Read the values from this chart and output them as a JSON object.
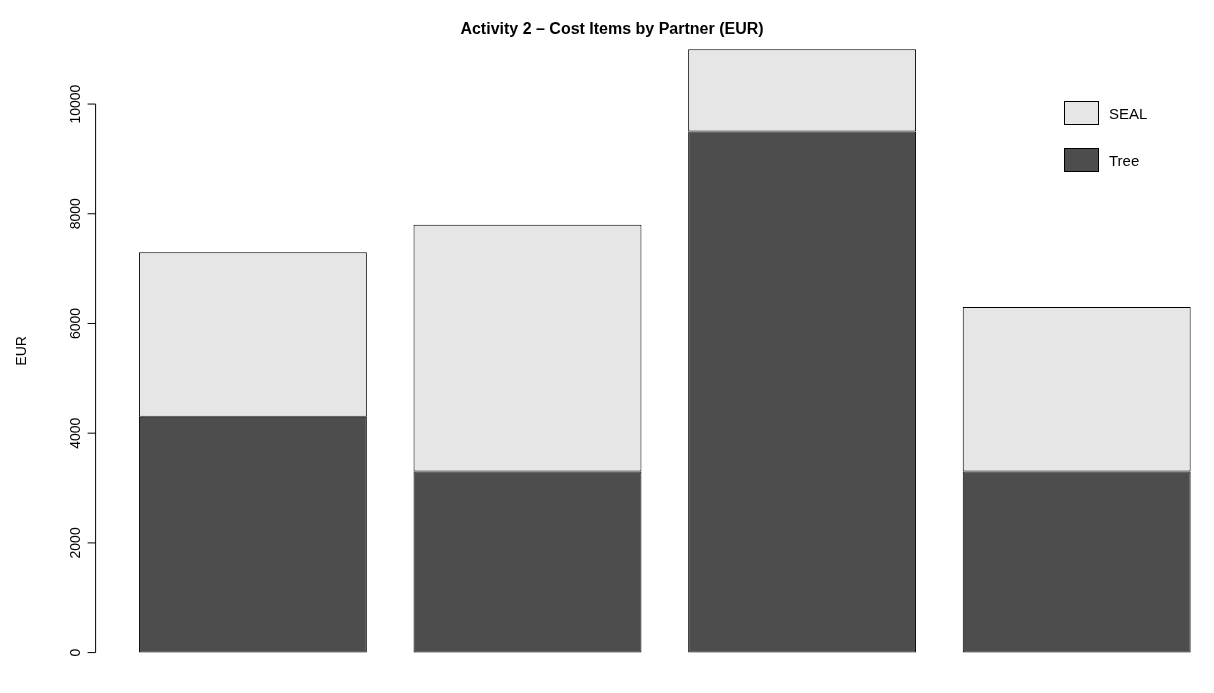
{
  "chart_data": {
    "type": "bar",
    "title": "Activity 2 – Cost Items by Partner (EUR)",
    "ylabel": "EUR",
    "categories": [
      null,
      null,
      null,
      null
    ],
    "stacked": true,
    "series": [
      {
        "name": "Tree",
        "color": "#4d4d4d",
        "values": [
          4300,
          3300,
          9500,
          3300
        ]
      },
      {
        "name": "SEAL",
        "color": "#e6e6e6",
        "values": [
          3000,
          4500,
          1500,
          3000
        ]
      }
    ],
    "ylim": [
      0,
      11000
    ],
    "yticks": [
      0,
      2000,
      4000,
      6000,
      8000,
      10000
    ],
    "grid": false,
    "legend": "top right",
    "tick_labels": "y"
  }
}
